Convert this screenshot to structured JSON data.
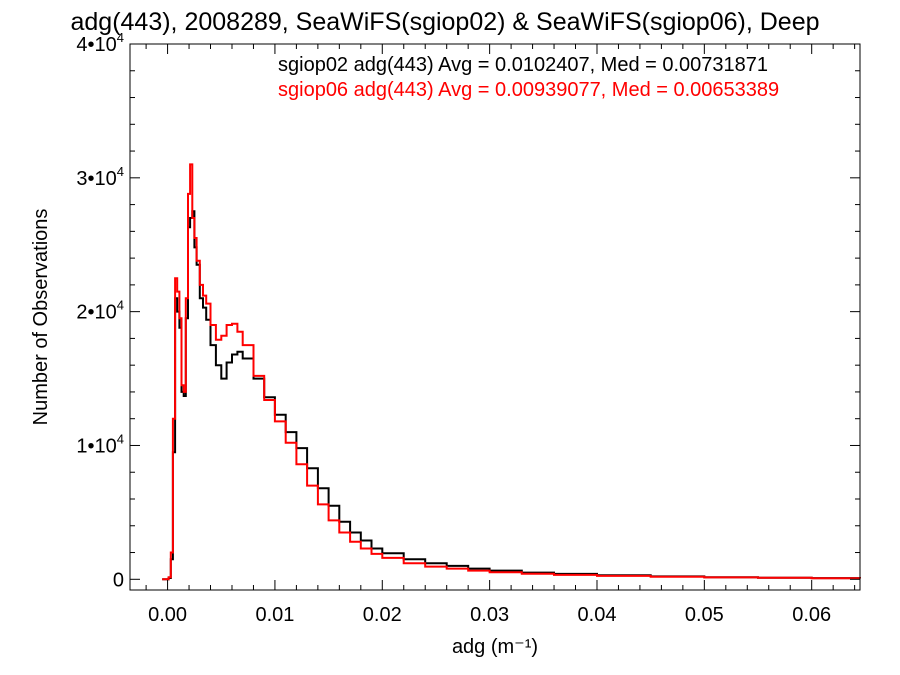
{
  "chart_data": {
    "type": "line",
    "title": "adg(443), 2008289, SeaWiFS(sgiop02) & SeaWiFS(sgiop06), Deep",
    "xlabel": "adg (m⁻¹)",
    "ylabel": "Number of Observations",
    "xlim": [
      -0.0035,
      0.0645
    ],
    "ylim": [
      -800,
      40000
    ],
    "x_ticks": [
      0.0,
      0.01,
      0.02,
      0.03,
      0.04,
      0.05,
      0.06
    ],
    "x_tick_labels": [
      "0.00",
      "0.01",
      "0.02",
      "0.03",
      "0.04",
      "0.05",
      "0.06"
    ],
    "y_ticks": [
      0,
      10000,
      20000,
      30000,
      40000
    ],
    "y_tick_labels": [
      {
        "mant": "0",
        "exp": ""
      },
      {
        "mant": "1•10",
        "exp": "4"
      },
      {
        "mant": "2•10",
        "exp": "4"
      },
      {
        "mant": "3•10",
        "exp": "4"
      },
      {
        "mant": "4•10",
        "exp": "4"
      }
    ],
    "step_style": "histogram",
    "series": [
      {
        "name": "sgiop02 adg(443) Avg = 0.0102407, Med = 0.00731871",
        "color": "#000000",
        "points": [
          [
            -0.0005,
            0
          ],
          [
            0.0001,
            100
          ],
          [
            0.0003,
            1500
          ],
          [
            0.0005,
            9500
          ],
          [
            0.0007,
            21000
          ],
          [
            0.0009,
            20000
          ],
          [
            0.0011,
            18800
          ],
          [
            0.0013,
            14000
          ],
          [
            0.0015,
            13700
          ],
          [
            0.0017,
            19500
          ],
          [
            0.0019,
            26300
          ],
          [
            0.0021,
            27000
          ],
          [
            0.0023,
            27500
          ],
          [
            0.0025,
            24800
          ],
          [
            0.0027,
            23500
          ],
          [
            0.003,
            21000
          ],
          [
            0.0033,
            20300
          ],
          [
            0.0036,
            19400
          ],
          [
            0.004,
            17500
          ],
          [
            0.0045,
            16000
          ],
          [
            0.005,
            15000
          ],
          [
            0.0055,
            16200
          ],
          [
            0.006,
            16800
          ],
          [
            0.0065,
            17000
          ],
          [
            0.007,
            16500
          ],
          [
            0.008,
            15000
          ],
          [
            0.009,
            13600
          ],
          [
            0.01,
            12300
          ],
          [
            0.011,
            11000
          ],
          [
            0.012,
            9800
          ],
          [
            0.013,
            8300
          ],
          [
            0.014,
            6800
          ],
          [
            0.015,
            5500
          ],
          [
            0.016,
            4300
          ],
          [
            0.017,
            3500
          ],
          [
            0.018,
            2900
          ],
          [
            0.019,
            2300
          ],
          [
            0.02,
            1950
          ],
          [
            0.022,
            1500
          ],
          [
            0.024,
            1200
          ],
          [
            0.026,
            1000
          ],
          [
            0.028,
            800
          ],
          [
            0.03,
            650
          ],
          [
            0.033,
            500
          ],
          [
            0.036,
            400
          ],
          [
            0.04,
            300
          ],
          [
            0.045,
            220
          ],
          [
            0.05,
            160
          ],
          [
            0.055,
            120
          ],
          [
            0.06,
            90
          ],
          [
            0.0645,
            70
          ]
        ]
      },
      {
        "name": "sgiop06 adg(443) Avg = 0.00939077, Med = 0.00653389",
        "color": "#ff0000",
        "points": [
          [
            -0.0005,
            0
          ],
          [
            0.0001,
            150
          ],
          [
            0.0003,
            2000
          ],
          [
            0.0005,
            12000
          ],
          [
            0.0007,
            22500
          ],
          [
            0.0009,
            21500
          ],
          [
            0.0011,
            19500
          ],
          [
            0.0013,
            14500
          ],
          [
            0.0015,
            14000
          ],
          [
            0.0017,
            21000
          ],
          [
            0.0019,
            28800
          ],
          [
            0.0021,
            31000
          ],
          [
            0.0023,
            27000
          ],
          [
            0.0025,
            25500
          ],
          [
            0.0027,
            23800
          ],
          [
            0.003,
            22000
          ],
          [
            0.0033,
            21200
          ],
          [
            0.0036,
            20600
          ],
          [
            0.004,
            19000
          ],
          [
            0.0045,
            17900
          ],
          [
            0.005,
            18200
          ],
          [
            0.0055,
            19000
          ],
          [
            0.006,
            19100
          ],
          [
            0.0065,
            18500
          ],
          [
            0.007,
            17500
          ],
          [
            0.008,
            15200
          ],
          [
            0.009,
            13400
          ],
          [
            0.01,
            11800
          ],
          [
            0.011,
            10200
          ],
          [
            0.012,
            8600
          ],
          [
            0.013,
            7000
          ],
          [
            0.014,
            5600
          ],
          [
            0.015,
            4400
          ],
          [
            0.016,
            3500
          ],
          [
            0.017,
            2800
          ],
          [
            0.018,
            2300
          ],
          [
            0.019,
            1900
          ],
          [
            0.02,
            1600
          ],
          [
            0.022,
            1200
          ],
          [
            0.024,
            950
          ],
          [
            0.026,
            800
          ],
          [
            0.028,
            650
          ],
          [
            0.03,
            530
          ],
          [
            0.033,
            420
          ],
          [
            0.036,
            330
          ],
          [
            0.04,
            250
          ],
          [
            0.045,
            190
          ],
          [
            0.05,
            140
          ],
          [
            0.055,
            110
          ],
          [
            0.06,
            85
          ],
          [
            0.0645,
            65
          ]
        ]
      }
    ]
  }
}
